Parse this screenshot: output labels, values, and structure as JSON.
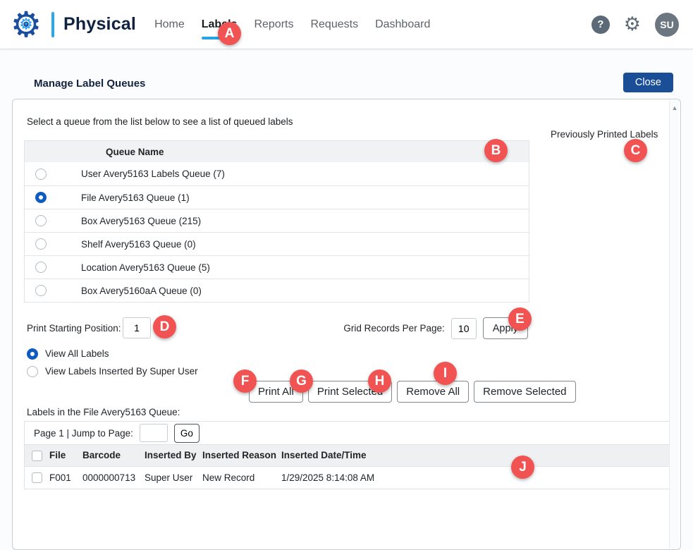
{
  "header": {
    "brand": "Physical",
    "nav": {
      "items": [
        {
          "label": "Home"
        },
        {
          "label": "Labels",
          "active": true
        },
        {
          "label": "Reports"
        },
        {
          "label": "Requests"
        },
        {
          "label": "Dashboard"
        }
      ]
    },
    "help_icon": "?",
    "settings_icon": "⚙",
    "avatar": "SU"
  },
  "page": {
    "title": "Manage Label Queues",
    "close_label": "Close"
  },
  "panel": {
    "instruction": "Select a queue from the list below to see a list of queued labels",
    "previously_printed_label": "Previously Printed Labels",
    "queue_table": {
      "header": "Queue Name",
      "selected_index": 1,
      "rows": [
        {
          "label": "User Avery5163 Labels Queue (7)"
        },
        {
          "label": "File Avery5163 Queue (1)"
        },
        {
          "label": "Box Avery5163 Queue (215)"
        },
        {
          "label": "Shelf Avery5163 Queue (0)"
        },
        {
          "label": "Location Avery5163 Queue (5)"
        },
        {
          "label": "Box Avery5160aA Queue (0)"
        }
      ]
    },
    "controls": {
      "print_start_label": "Print Starting Position:",
      "print_start_value": "1",
      "grid_records_label": "Grid Records Per Page:",
      "grid_records_value": "10",
      "apply_label": "Apply"
    },
    "view_options": [
      {
        "label": "View All Labels",
        "selected": true
      },
      {
        "label": "View Labels Inserted By Super User",
        "selected": false
      }
    ],
    "actions": [
      {
        "label": "Print All"
      },
      {
        "label": "Print Selected"
      },
      {
        "label": "Remove All"
      },
      {
        "label": "Remove Selected"
      }
    ],
    "queue_detail": {
      "caption": "Labels in the File Avery5163 Queue:",
      "pagination": {
        "page_text": "Page 1 | Jump to Page:",
        "go_label": "Go"
      },
      "table": {
        "columns": [
          "File",
          "Barcode",
          "Inserted By",
          "Inserted Reason",
          "Inserted Date/Time"
        ],
        "rows": [
          {
            "file": "F001",
            "barcode": "0000000713",
            "inserted_by": "Super User",
            "inserted_reason": "New Record",
            "inserted_datetime": "1/29/2025 8:14:08 AM"
          }
        ]
      }
    }
  },
  "badges": {
    "a": "A",
    "b": "B",
    "c": "C",
    "d": "D",
    "e": "E",
    "f": "F",
    "g": "G",
    "h": "H",
    "i": "I",
    "j": "J"
  },
  "colors": {
    "accent_blue": "#29a3e8",
    "brand_navy": "#0f2240",
    "primary_button_blue": "#1a4e96",
    "badge_red": "#f15353",
    "selected_radio_blue": "#0f5bbf"
  }
}
